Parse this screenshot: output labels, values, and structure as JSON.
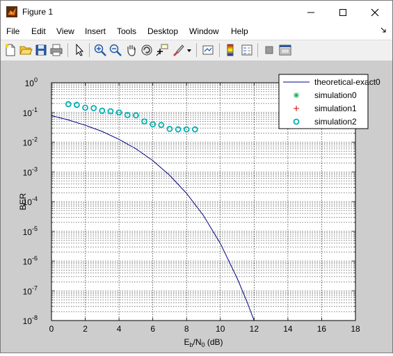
{
  "window": {
    "title": "Figure 1"
  },
  "menu": [
    "File",
    "Edit",
    "View",
    "Insert",
    "Tools",
    "Desktop",
    "Window",
    "Help"
  ],
  "toolbar_icons": [
    "new-figure-icon",
    "open-file-icon",
    "save-icon",
    "print-icon",
    "edit-plot-arrow-icon",
    "zoom-in-icon",
    "zoom-out-icon",
    "pan-hand-icon",
    "rotate-3d-icon",
    "data-cursor-icon",
    "brush-icon",
    "link-plot-icon",
    "insert-colorbar-icon",
    "insert-legend-icon",
    "hide-plot-tools-icon",
    "show-plot-tools-icon"
  ],
  "colors": {
    "theory": "#000080",
    "sim0": "#00b050",
    "sim1": "#d00000",
    "sim2": "#00b0b0",
    "figure_bg": "#cdcdcd"
  },
  "chart_data": {
    "type": "line",
    "xlabel_main": "E",
    "xlabel_sub1": "b",
    "xlabel_mid": "/N",
    "xlabel_sub2": "0",
    "xlabel_unit": " (dB)",
    "ylabel": "BER",
    "xlim": [
      0,
      18
    ],
    "ylim": [
      1e-08,
      1
    ],
    "yscale": "log",
    "grid": true,
    "legend_position": "top-right",
    "xticks": [
      "0",
      "2",
      "4",
      "6",
      "8",
      "10",
      "12",
      "14",
      "16",
      "18"
    ],
    "yticks": [
      {
        "base": "10",
        "exp": "0"
      },
      {
        "base": "10",
        "exp": "-1"
      },
      {
        "base": "10",
        "exp": "-2"
      },
      {
        "base": "10",
        "exp": "-3"
      },
      {
        "base": "10",
        "exp": "-4"
      },
      {
        "base": "10",
        "exp": "-5"
      },
      {
        "base": "10",
        "exp": "-6"
      },
      {
        "base": "10",
        "exp": "-7"
      },
      {
        "base": "10",
        "exp": "-8"
      }
    ],
    "series": [
      {
        "name": "theoretical-exact0",
        "style": "line",
        "color": "#000080",
        "x": [
          0,
          1,
          2,
          3,
          4,
          5,
          6,
          7,
          8,
          9,
          10,
          11,
          11.6,
          12
        ],
        "y": [
          0.078,
          0.056,
          0.037,
          0.023,
          0.0125,
          0.006,
          0.0024,
          0.00077,
          0.00019,
          3.4e-05,
          3.9e-06,
          2.6e-07,
          4e-08,
          1e-08
        ]
      },
      {
        "name": "simulation0",
        "style": "star",
        "color": "#00b050",
        "x": [],
        "y": []
      },
      {
        "name": "simulation1",
        "style": "plus",
        "color": "#d00000",
        "x": [],
        "y": []
      },
      {
        "name": "simulation2",
        "style": "circle",
        "color": "#00b0b0",
        "x": [
          1,
          1.5,
          2,
          2.5,
          3,
          3.5,
          4,
          4.5,
          5,
          5.5,
          6,
          6.5,
          7,
          7.5,
          8,
          8.5
        ],
        "y": [
          0.19,
          0.18,
          0.145,
          0.14,
          0.115,
          0.11,
          0.1,
          0.082,
          0.08,
          0.05,
          0.04,
          0.038,
          0.028,
          0.027,
          0.027,
          0.027
        ]
      }
    ]
  }
}
